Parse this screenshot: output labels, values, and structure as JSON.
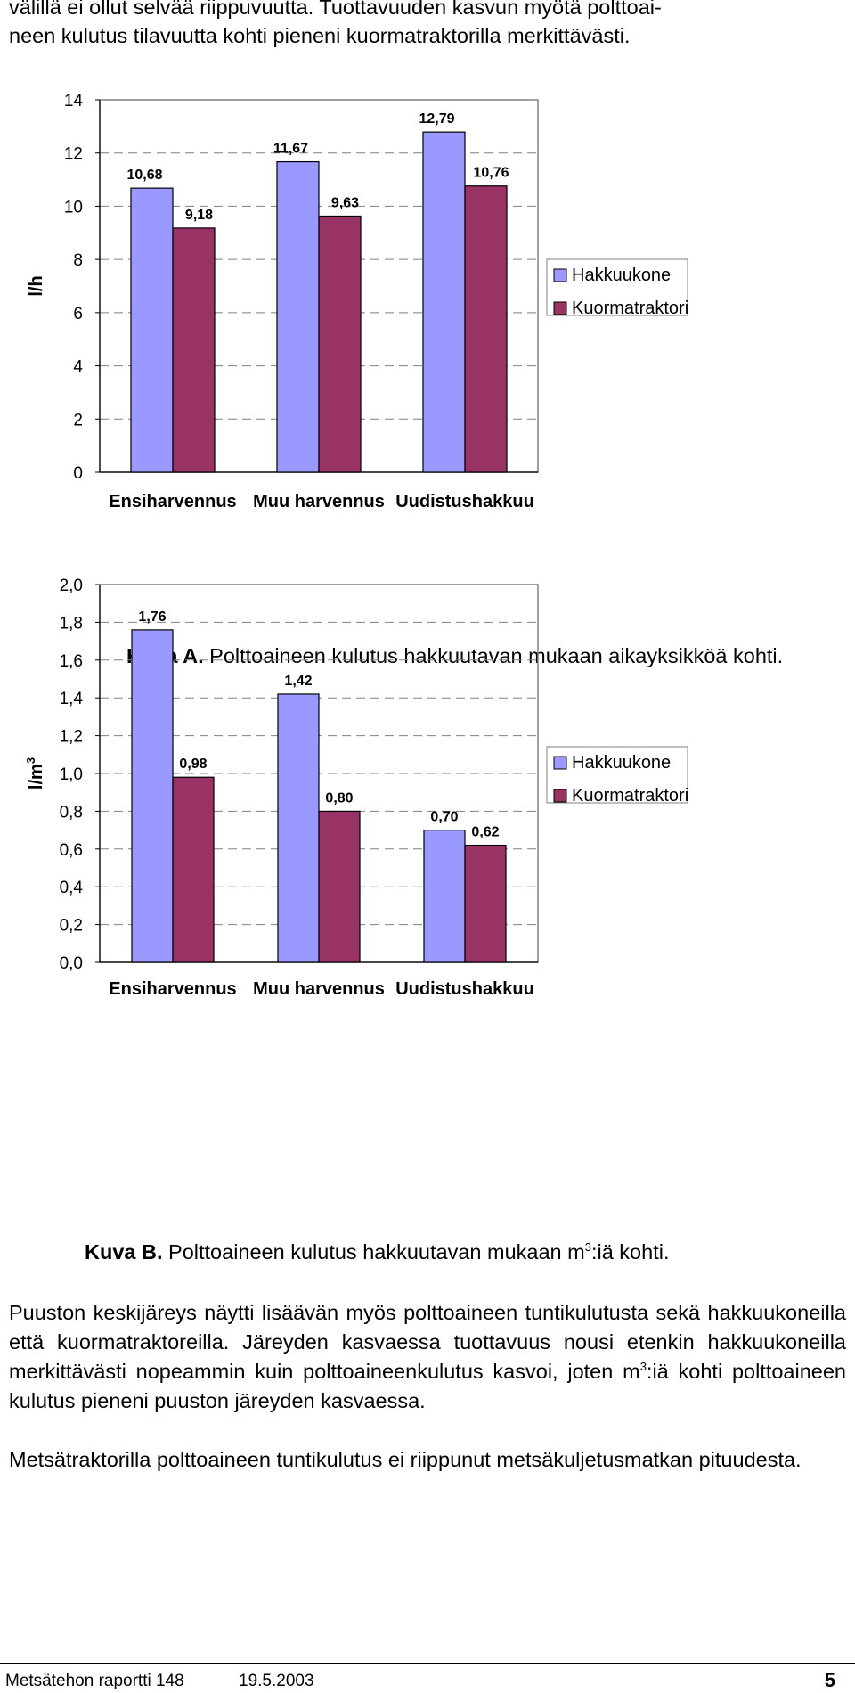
{
  "intro": {
    "line1": "välillä ei ollut selvää riippuvuutta. Tuottavuuden kasvun myötä polttoai-",
    "line2": "neen kulutus tilavuutta kohti pieneni kuormatraktorilla merkittävästi."
  },
  "caption_a": {
    "label": "Kuva A.",
    "text": " Polttoaineen kulutus hakkuutavan mukaan aikayksikköä kohti."
  },
  "caption_b": {
    "label": "Kuva B.",
    "text_before": " Polttoaineen kulutus hakkuutavan mukaan m",
    "sup": "3",
    "text_after": ":iä kohti."
  },
  "paragraph1": {
    "before_sup": "Puuston keskijäreys näytti lisäävän myös polttoaineen tuntikulutusta sekä hakkuukoneilla että kuormatraktoreilla. Järeyden kasvaessa tuottavuus nousi etenkin hakkuukoneilla merkittävästi nopeammin kuin polttoaineenkulutus kasvoi, joten m",
    "sup": "3",
    "after_sup": ":iä kohti polttoaineen kulutus pieneni puuston järeyden kasvaessa."
  },
  "paragraph2": "Metsätraktorilla polttoaineen tuntikulutus ei riippunut metsäkuljetusmatkan pituudesta.",
  "footer": {
    "publication": "Metsätehon raportti 148",
    "date": "19.5.2003",
    "page": "5"
  },
  "colors": {
    "series1": "#9999ff",
    "series2": "#993366",
    "grid": "#808080",
    "frame": "#808080"
  },
  "chart_data": [
    {
      "type": "bar",
      "categories": [
        "Ensiharvennus",
        "Muu harvennus",
        "Uudistushakkuu"
      ],
      "series": [
        {
          "name": "Hakkuukone",
          "values": [
            10.68,
            11.67,
            12.79
          ],
          "labels": [
            "10,68",
            "11,67",
            "12,79"
          ]
        },
        {
          "name": "Kuormatraktori",
          "values": [
            9.18,
            9.63,
            10.76
          ],
          "labels": [
            "9,18",
            "9,63",
            "10,76"
          ]
        }
      ],
      "ylabel": "l/h",
      "ylim": [
        0,
        14
      ],
      "yticks": [
        0,
        2,
        4,
        6,
        8,
        10,
        12,
        14
      ],
      "ytick_labels": [
        "0",
        "2",
        "4",
        "6",
        "8",
        "10",
        "12",
        "14"
      ],
      "grid": "dashed horizontal",
      "legend": "right"
    },
    {
      "type": "bar",
      "categories": [
        "Ensiharvennus",
        "Muu harvennus",
        "Uudistushakkuu"
      ],
      "series": [
        {
          "name": "Hakkuukone",
          "values": [
            1.76,
            1.42,
            0.7
          ],
          "labels": [
            "1,76",
            "1,42",
            "0,70"
          ]
        },
        {
          "name": "Kuormatraktori",
          "values": [
            0.98,
            0.8,
            0.62
          ],
          "labels": [
            "0,98",
            "0,80",
            "0,62"
          ]
        }
      ],
      "ylabel": "l/m",
      "ylabel_sup": "3",
      "ylim": [
        0,
        2.0
      ],
      "yticks": [
        0,
        0.2,
        0.4,
        0.6,
        0.8,
        1.0,
        1.2,
        1.4,
        1.6,
        1.8,
        2.0
      ],
      "ytick_labels": [
        "0,0",
        "0,2",
        "0,4",
        "0,6",
        "0,8",
        "1,0",
        "1,2",
        "1,4",
        "1,6",
        "1,8",
        "2,0"
      ],
      "grid": "dashed horizontal",
      "legend": "right"
    }
  ]
}
